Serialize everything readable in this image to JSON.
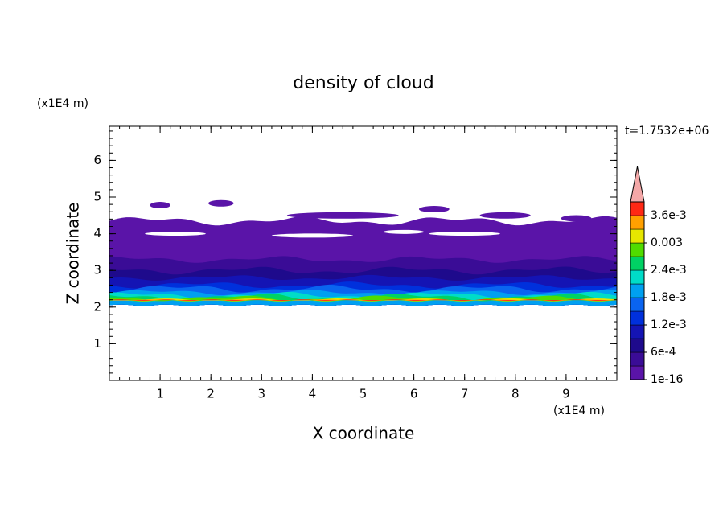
{
  "chart_data": {
    "type": "contour",
    "title": "density of cloud",
    "x_label": "X coordinate",
    "y_label": "Z coordinate",
    "x_unit": "(x1E4 m)",
    "y_unit": "(x1E4 m)",
    "time_label": "t=1.7532e+06",
    "xlim": [
      0,
      10
    ],
    "ylim": [
      0,
      6.93
    ],
    "xticks": [
      1,
      2,
      3,
      4,
      5,
      6,
      7,
      8,
      9
    ],
    "yticks": [
      1,
      2,
      3,
      4,
      5,
      6
    ],
    "colorbar": {
      "clim": [
        1e-16,
        0.0039
      ],
      "colors": [
        "#5a14a8",
        "#3a0c96",
        "#1e0a8c",
        "#1414b4",
        "#0030dc",
        "#0a64f0",
        "#00a0f0",
        "#00dcc8",
        "#00d264",
        "#50dc00",
        "#e6e600",
        "#ffa000",
        "#ff2814"
      ],
      "extend_color": "#f4a8a8",
      "ticks": [
        1e-16,
        {
          "value": 0.0006,
          "label": "6e-4"
        },
        {
          "value": 0.0012,
          "label": "1.2e-3"
        },
        {
          "value": 0.0018,
          "label": "1.8e-3"
        },
        {
          "value": 0.0024,
          "label": "2.4e-3"
        },
        0.003,
        {
          "value": 0.0036,
          "label": "3.6e-3"
        }
      ]
    }
  }
}
